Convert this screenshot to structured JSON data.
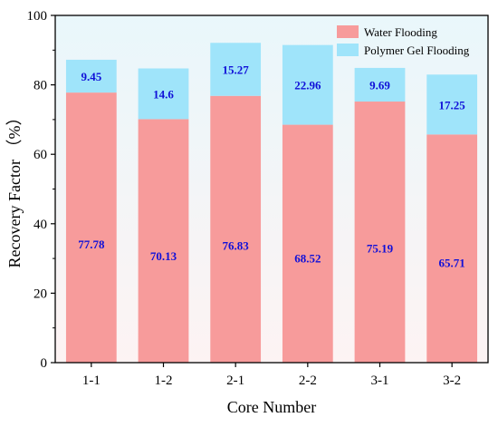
{
  "chart_data": {
    "type": "bar",
    "stacked": true,
    "categories": [
      "1-1",
      "1-2",
      "2-1",
      "2-2",
      "3-1",
      "3-2"
    ],
    "series": [
      {
        "name": "Water Flooding",
        "values": [
          77.78,
          70.13,
          76.83,
          68.52,
          75.19,
          65.71
        ],
        "color": "#f79b9b"
      },
      {
        "name": "Polymer Gel Flooding",
        "values": [
          9.45,
          14.6,
          15.27,
          22.96,
          9.69,
          17.25
        ],
        "color": "#9fe4fa"
      }
    ],
    "data_labels": [
      [
        "77.78",
        "70.13",
        "76.83",
        "68.52",
        "75.19",
        "65.71"
      ],
      [
        "9.45",
        "14.6",
        "15.27",
        "22.96",
        "9.69",
        "17.25"
      ]
    ],
    "xlabel": "Core Number",
    "ylabel": "Recovery Factor （%）",
    "ylim": [
      0,
      100
    ],
    "yticks": [
      "0",
      "20",
      "40",
      "60",
      "80",
      "100"
    ],
    "grid": false,
    "legend_position": "top-right",
    "background_gradient": [
      "#e9f7fb",
      "#fdf3f3"
    ],
    "label_color": "#1010d8"
  }
}
